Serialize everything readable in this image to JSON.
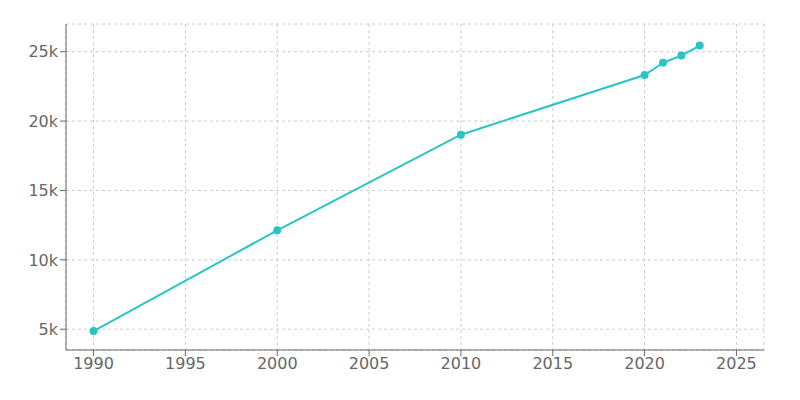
{
  "chart_data": {
    "type": "line",
    "x": [
      1990,
      2000,
      2010,
      2020,
      2021,
      2022,
      2023
    ],
    "values": [
      4867,
      12124,
      19022,
      23324,
      24204,
      24727,
      25449
    ],
    "color": "#2ac4c4",
    "marker": "circle",
    "xlim": [
      1988.5,
      2026.5
    ],
    "xticks": [
      1990,
      1995,
      2000,
      2005,
      2010,
      2015,
      2020,
      2025
    ],
    "ylim": [
      3500,
      27000
    ],
    "yticks": [
      {
        "value": 5000,
        "label": "5k"
      },
      {
        "value": 10000,
        "label": "10k"
      },
      {
        "value": 15000,
        "label": "15k"
      },
      {
        "value": 20000,
        "label": "20k"
      },
      {
        "value": 25000,
        "label": "25k"
      }
    ],
    "grid": true
  }
}
